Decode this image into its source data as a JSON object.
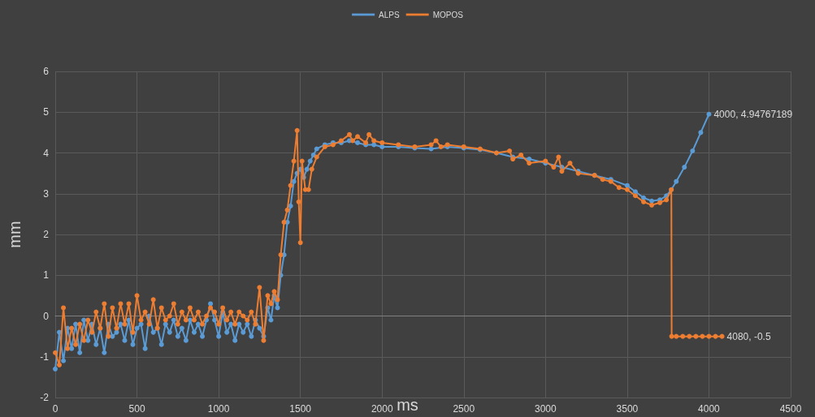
{
  "chart_data": {
    "type": "line",
    "xlabel": "ms",
    "ylabel": "mm",
    "xlim": [
      0,
      4500
    ],
    "xticks": [
      0,
      500,
      1000,
      1500,
      2000,
      2500,
      3000,
      3500,
      4000,
      4500
    ],
    "ylim": [
      -2,
      6
    ],
    "yticks": [
      -2,
      -1,
      0,
      1,
      2,
      3,
      4,
      5,
      6
    ],
    "grid": true,
    "legend": "top",
    "marker": "circle",
    "line_style": "solid",
    "series": [
      {
        "name": "ALPS",
        "color": "#5b9bd5",
        "x": [
          0,
          25,
          50,
          75,
          100,
          125,
          150,
          175,
          200,
          225,
          250,
          275,
          300,
          325,
          350,
          375,
          400,
          425,
          450,
          475,
          500,
          525,
          550,
          575,
          600,
          625,
          650,
          675,
          700,
          725,
          750,
          775,
          800,
          825,
          850,
          875,
          900,
          925,
          950,
          975,
          1000,
          1025,
          1050,
          1075,
          1100,
          1125,
          1150,
          1175,
          1200,
          1225,
          1250,
          1275,
          1300,
          1320,
          1340,
          1360,
          1380,
          1400,
          1420,
          1440,
          1460,
          1480,
          1500,
          1520,
          1540,
          1560,
          1580,
          1600,
          1650,
          1700,
          1750,
          1800,
          1850,
          1900,
          1950,
          2000,
          2100,
          2200,
          2300,
          2400,
          2500,
          2600,
          2700,
          2800,
          2900,
          3000,
          3100,
          3200,
          3300,
          3400,
          3500,
          3550,
          3600,
          3650,
          3700,
          3740,
          3770,
          3800,
          3850,
          3900,
          3950,
          4000
        ],
        "values": [
          -1.3,
          -0.4,
          -1.1,
          -0.3,
          -0.8,
          -0.2,
          -0.9,
          -0.1,
          -0.6,
          -0.2,
          -0.7,
          -0.3,
          -0.9,
          -0.2,
          -0.5,
          -0.4,
          -0.2,
          -0.6,
          -0.1,
          -0.7,
          -0.3,
          -0.2,
          -0.8,
          0.0,
          -0.4,
          -0.3,
          -0.7,
          -0.2,
          -0.4,
          -0.1,
          -0.5,
          -0.3,
          -0.6,
          -0.1,
          -0.4,
          -0.2,
          -0.5,
          -0.1,
          0.3,
          -0.1,
          -0.5,
          0.1,
          -0.4,
          -0.2,
          -0.6,
          -0.2,
          -0.4,
          -0.2,
          -0.5,
          -0.1,
          -0.3,
          -0.5,
          0.2,
          -0.1,
          0.5,
          0.2,
          1.0,
          1.5,
          2.3,
          2.7,
          3.3,
          3.5,
          3.6,
          3.4,
          3.6,
          3.8,
          3.95,
          4.1,
          4.2,
          4.25,
          4.25,
          4.3,
          4.25,
          4.2,
          4.2,
          4.15,
          4.15,
          4.12,
          4.1,
          4.15,
          4.12,
          4.08,
          4.0,
          3.9,
          3.85,
          3.75,
          3.65,
          3.55,
          3.45,
          3.35,
          3.2,
          3.05,
          2.9,
          2.82,
          2.85,
          2.95,
          3.1,
          3.3,
          3.65,
          4.05,
          4.5,
          4.95
        ]
      },
      {
        "name": "MOPOS",
        "color": "#ed7d31",
        "x": [
          0,
          25,
          50,
          75,
          100,
          125,
          150,
          175,
          200,
          225,
          250,
          275,
          300,
          325,
          350,
          375,
          400,
          425,
          450,
          475,
          500,
          525,
          550,
          575,
          600,
          625,
          650,
          675,
          700,
          725,
          750,
          775,
          800,
          825,
          850,
          875,
          900,
          925,
          950,
          975,
          1000,
          1025,
          1050,
          1075,
          1100,
          1125,
          1150,
          1175,
          1200,
          1225,
          1250,
          1275,
          1300,
          1320,
          1340,
          1360,
          1380,
          1400,
          1420,
          1440,
          1460,
          1480,
          1490,
          1500,
          1510,
          1530,
          1550,
          1570,
          1600,
          1650,
          1700,
          1750,
          1800,
          1820,
          1850,
          1900,
          1920,
          1950,
          2000,
          2100,
          2200,
          2300,
          2330,
          2360,
          2400,
          2500,
          2600,
          2700,
          2780,
          2800,
          2850,
          2900,
          3000,
          3050,
          3080,
          3100,
          3150,
          3200,
          3300,
          3350,
          3400,
          3450,
          3500,
          3550,
          3600,
          3650,
          3700,
          3740,
          3770,
          3772,
          3800,
          3840,
          3880,
          3920,
          3960,
          4000,
          4040,
          4080
        ],
        "values": [
          -0.9,
          -1.2,
          0.2,
          -0.8,
          -0.3,
          -0.7,
          -0.2,
          -0.6,
          -0.1,
          -0.4,
          0.1,
          -0.3,
          0.3,
          -0.5,
          0.2,
          -0.3,
          0.3,
          -0.2,
          0.3,
          -0.4,
          0.5,
          -0.1,
          0.1,
          -0.2,
          0.4,
          -0.3,
          0.2,
          -0.1,
          0.0,
          0.3,
          -0.2,
          0.1,
          -0.1,
          0.2,
          -0.1,
          0.1,
          -0.2,
          0.0,
          0.2,
          0.1,
          -0.2,
          0.2,
          -0.1,
          0.1,
          -0.2,
          0.1,
          0.0,
          -0.1,
          0.1,
          -0.2,
          0.7,
          -0.6,
          0.5,
          0.3,
          0.6,
          0.4,
          1.5,
          2.3,
          2.6,
          3.2,
          3.8,
          4.55,
          2.8,
          1.8,
          3.8,
          3.1,
          3.1,
          3.6,
          3.9,
          4.15,
          4.2,
          4.3,
          4.45,
          4.3,
          4.4,
          4.25,
          4.45,
          4.3,
          4.25,
          4.2,
          4.15,
          4.2,
          4.3,
          4.15,
          4.2,
          4.15,
          4.1,
          4.0,
          4.05,
          3.85,
          3.95,
          3.75,
          3.8,
          3.65,
          3.9,
          3.55,
          3.75,
          3.5,
          3.45,
          3.35,
          3.3,
          3.15,
          3.1,
          2.95,
          2.8,
          2.72,
          2.78,
          2.85,
          3.1,
          -0.5,
          -0.5,
          -0.5,
          -0.5,
          -0.5,
          -0.5,
          -0.5,
          -0.5,
          -0.5
        ]
      }
    ],
    "annotations": [
      {
        "text": "4000, 4.94767189",
        "x": 4000,
        "y": 4.95
      },
      {
        "text": "4080, -0.5",
        "x": 4080,
        "y": -0.5
      }
    ]
  }
}
